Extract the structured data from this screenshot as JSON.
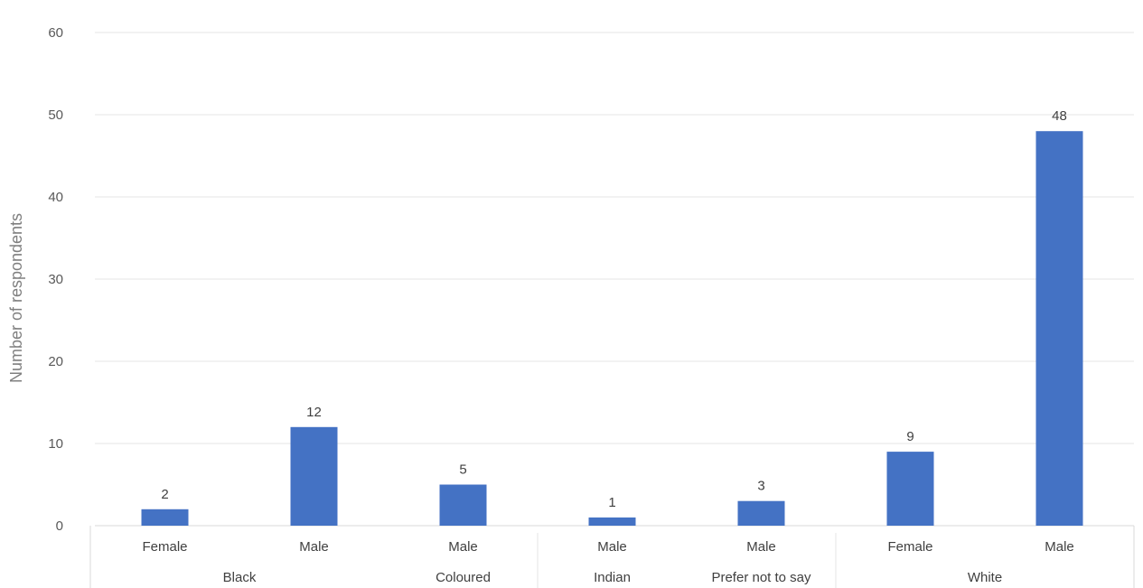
{
  "chart_data": {
    "type": "bar",
    "title": "",
    "ylabel": "Number of respondents",
    "xlabel": "",
    "ylim": [
      0,
      60
    ],
    "yticks": [
      0,
      10,
      20,
      30,
      40,
      50,
      60
    ],
    "grid": true,
    "legend": "none",
    "bar_color": "#4472c4",
    "groups": [
      {
        "label": "Black",
        "categories": [
          "Female",
          "Male"
        ],
        "values": [
          2,
          12
        ]
      },
      {
        "label": "Coloured",
        "categories": [
          "Male"
        ],
        "values": [
          5
        ]
      },
      {
        "label": "Indian",
        "categories": [
          "Male"
        ],
        "values": [
          1
        ]
      },
      {
        "label": "Prefer not to say",
        "categories": [
          "Male"
        ],
        "values": [
          3
        ]
      },
      {
        "label": "White",
        "categories": [
          "Female",
          "Male"
        ],
        "values": [
          9,
          48
        ]
      }
    ]
  }
}
